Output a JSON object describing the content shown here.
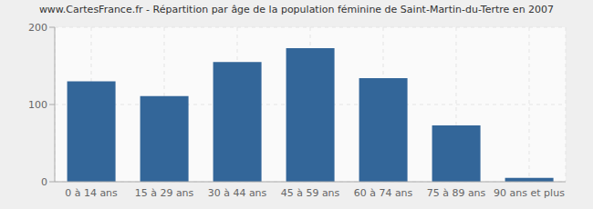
{
  "chart_data": {
    "type": "bar",
    "title": "www.CartesFrance.fr - Répartition par âge de la population féminine de Saint-Martin-du-Tertre en 2007",
    "categories": [
      "0 à 14 ans",
      "15 à 29 ans",
      "30 à 44 ans",
      "45 à 59 ans",
      "60 à 74 ans",
      "75 à 89 ans",
      "90 ans et plus"
    ],
    "values": [
      130,
      111,
      155,
      173,
      134,
      73,
      5
    ],
    "color": "#336699",
    "ylim": [
      0,
      200
    ],
    "yticks": [
      0,
      100,
      200
    ],
    "grid": true
  }
}
